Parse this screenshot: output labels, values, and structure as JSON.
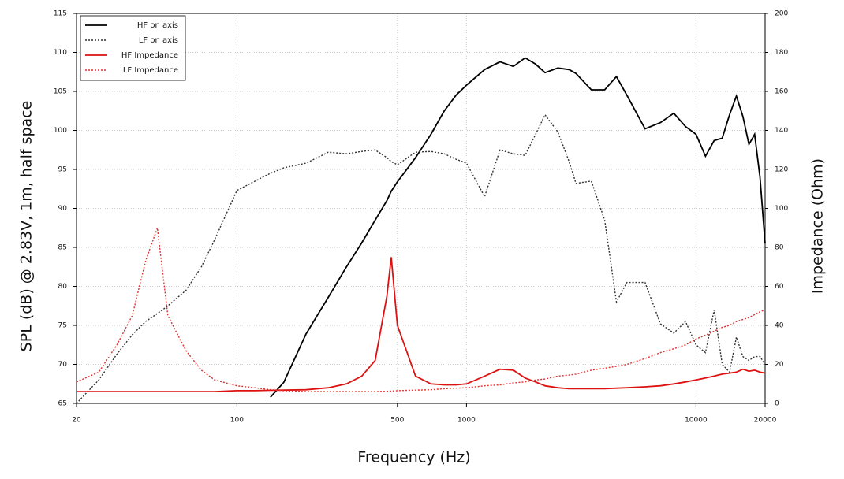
{
  "chart_data": {
    "type": "line",
    "xlabel": "Frequency (Hz)",
    "ylabel": "SPL (dB) @ 2.83V, 1m, half space",
    "y2label": "Impedance (Ohm)",
    "xscale": "log",
    "grid": true,
    "legend": "upper left",
    "x": [
      20,
      25,
      30,
      35,
      40,
      45,
      50,
      60,
      70,
      80,
      100,
      120,
      140,
      160,
      200,
      250,
      300,
      350,
      400,
      450,
      470,
      500,
      600,
      700,
      800,
      900,
      1000,
      1200,
      1400,
      1600,
      1800,
      2000,
      2200,
      2500,
      2800,
      3000,
      3500,
      4000,
      4500,
      5000,
      6000,
      7000,
      8000,
      9000,
      10000,
      11000,
      12000,
      13000,
      14000,
      15000,
      16000,
      17000,
      18000,
      19000,
      20000
    ],
    "xlim": [
      20,
      20000
    ],
    "xticks": [
      20,
      100,
      500,
      1000,
      10000,
      20000
    ],
    "ylim": [
      65,
      115
    ],
    "yticks": [
      65,
      70,
      75,
      80,
      85,
      90,
      95,
      100,
      105,
      110,
      115
    ],
    "y2lim": [
      0,
      200
    ],
    "y2ticks": [
      0,
      20,
      40,
      60,
      80,
      100,
      120,
      140,
      160,
      180,
      200
    ],
    "series": [
      {
        "name": "HF on axis",
        "color": "#000000",
        "style": "solid",
        "values": [
          null,
          null,
          null,
          null,
          null,
          null,
          null,
          null,
          null,
          null,
          null,
          null,
          65.8,
          67.7,
          73.9,
          78.6,
          82.5,
          85.6,
          88.5,
          91,
          92.2,
          93.4,
          96.5,
          99.5,
          102.5,
          104.5,
          105.8,
          107.8,
          108.8,
          108.2,
          109.3,
          108.5,
          107.4,
          108,
          107.8,
          107.3,
          105.2,
          105.2,
          106.9,
          104.5,
          100.2,
          101,
          102.2,
          100.5,
          99.5,
          96.7,
          98.7,
          99,
          102,
          104.4,
          101.8,
          98.2,
          99.5,
          94,
          85.5
        ]
      },
      {
        "name": "LF on axis",
        "color": "#333333",
        "style": "dotted",
        "values": [
          65,
          68,
          71.3,
          73.8,
          75.5,
          76.5,
          77.5,
          79.5,
          82.5,
          86,
          92.3,
          93.5,
          94.5,
          95.2,
          95.8,
          97.2,
          97,
          97.3,
          97.5,
          96.5,
          96,
          95.6,
          97.2,
          97.3,
          97,
          96.3,
          95.8,
          91.5,
          97.5,
          97,
          96.8,
          99.5,
          102,
          99.8,
          96,
          93.2,
          93.5,
          88.5,
          78,
          80.5,
          80.5,
          75.2,
          74,
          75.5,
          72.5,
          71.5,
          77,
          70,
          69,
          73.5,
          71,
          70.5,
          71,
          71,
          70
        ]
      },
      {
        "name": "HF Impedance",
        "color": "#dd1111",
        "style": "solid",
        "axis": "y2",
        "values": [
          6,
          6,
          6,
          6,
          6,
          6,
          6,
          6,
          6,
          6,
          6.5,
          6.5,
          6.7,
          6.8,
          7,
          8,
          10,
          14,
          22,
          55,
          75,
          40,
          14,
          10,
          9.5,
          9.5,
          10,
          14,
          17.5,
          17,
          13,
          11,
          9,
          8,
          7.5,
          7.5,
          7.5,
          7.5,
          7.8,
          8,
          8.5,
          9,
          10,
          11,
          12,
          13,
          14,
          15,
          15.5,
          16,
          17.5,
          16.5,
          17,
          16,
          15.5
        ]
      },
      {
        "name": "LF Impedance",
        "color": "#e03030",
        "style": "dotted",
        "axis": "y2",
        "values": [
          11,
          16,
          30,
          45,
          73,
          90,
          45,
          27,
          17,
          12,
          9,
          8,
          7,
          6.5,
          6,
          6,
          6,
          6,
          6,
          6.2,
          6.3,
          6.5,
          6.8,
          7,
          7.5,
          7.8,
          8,
          9,
          9.5,
          10.5,
          11,
          12,
          12.5,
          14,
          14.5,
          15,
          17,
          18,
          19,
          20,
          23,
          26,
          28,
          30,
          33,
          35,
          37,
          39,
          40,
          42,
          43,
          44,
          45.5,
          47,
          48
        ]
      }
    ]
  }
}
